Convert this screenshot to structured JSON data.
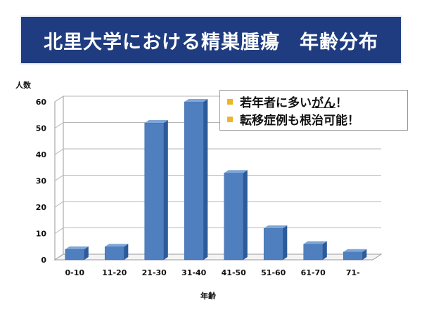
{
  "slide": {
    "title_main": "北里大学における精巣腫瘍",
    "title_sub": "年齢分布"
  },
  "callout": {
    "line1_pre": "若年者に多い",
    "line1_underlined": "がん",
    "line1_post": "！",
    "line2": "転移症例も根治可能！"
  },
  "colors": {
    "banner": "#1f3c80",
    "bar_front": "#4f7fbf",
    "bar_side": "#2d5a9a",
    "bar_top": "#7ea6d8",
    "bullet": "#f0b429"
  },
  "chart_data": {
    "type": "bar",
    "title": "",
    "xlabel": "年齢",
    "ylabel": "人数",
    "ylim": [
      0,
      60
    ],
    "yticks": [
      0,
      10,
      20,
      30,
      40,
      50,
      60
    ],
    "grid": true,
    "categories": [
      "0-10",
      "11-20",
      "21-30",
      "31-40",
      "41-50",
      "51-60",
      "61-70",
      "71-"
    ],
    "values": [
      4,
      5,
      52,
      60,
      33,
      12,
      6,
      3
    ]
  }
}
